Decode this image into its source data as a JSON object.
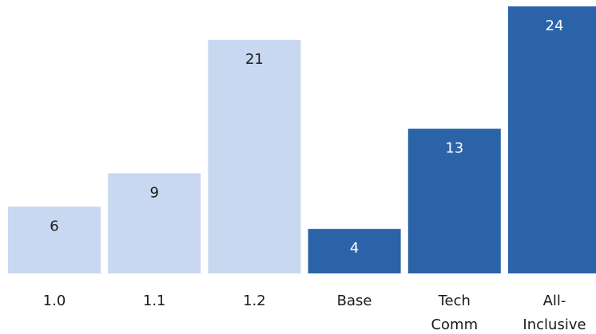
{
  "chart_data": {
    "type": "bar",
    "title": "",
    "xlabel": "",
    "ylabel": "",
    "ylim": [
      0,
      24
    ],
    "grid": false,
    "legend": "none",
    "categories": [
      [
        "1.0"
      ],
      [
        "1.1"
      ],
      [
        "1.2"
      ],
      [
        "Base"
      ],
      [
        "Tech",
        "Comm"
      ],
      [
        "All-",
        "Inclusive"
      ]
    ],
    "values": [
      6,
      9,
      21,
      4,
      13,
      24
    ],
    "colors": {
      "light_bar": "#c7d8f0",
      "dark_bar": "#2b63a8",
      "light_label": "#1a1a1a",
      "dark_label": "#ffffff"
    },
    "bar_color_keys": [
      "light",
      "light",
      "light",
      "dark",
      "dark",
      "dark"
    ]
  }
}
